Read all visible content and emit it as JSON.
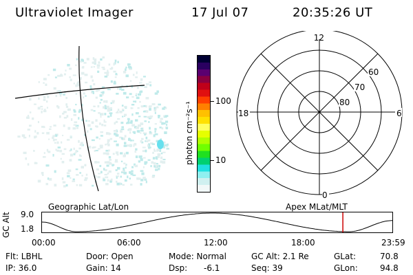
{
  "header": {
    "instrument": "Ultraviolet Imager",
    "date": "17 Jul 07",
    "time": "20:35:26 UT"
  },
  "colorbar": {
    "unit_label": "photon cm⁻²s⁻¹",
    "ticks": [
      "100",
      "10"
    ],
    "colors": [
      "#000033",
      "#2a0060",
      "#5a0070",
      "#8a0040",
      "#c0001a",
      "#e01010",
      "#ff4000",
      "#ff8000",
      "#ffc000",
      "#ffe000",
      "#ffff60",
      "#e6ff00",
      "#b0ff00",
      "#70ff00",
      "#20e020",
      "#00d070",
      "#20e0e0",
      "#90f0f0",
      "#d0f0f0",
      "#f2f8f8"
    ]
  },
  "polar_plot": {
    "mlt_labels": {
      "top": "12",
      "left": "18",
      "right": "6",
      "bottom": "0"
    },
    "lat_labels": [
      "60",
      "70",
      "80"
    ]
  },
  "timeline": {
    "left_title": "Geographic Lat/Lon",
    "right_title": "Apex MLat/MLT",
    "y_axis_label": "GC Alt",
    "y_ticks": [
      "9.0",
      "1.8"
    ],
    "x_ticks": [
      "00:00",
      "06:00",
      "12:00",
      "18:00",
      "23:59"
    ],
    "current_marker_color": "#cc0000"
  },
  "footer": {
    "row1": {
      "filter": "Flt: LBHL",
      "door": "Door: Open",
      "mode": "Mode: Normal",
      "gc_alt": "GC Alt: 2.1 Re",
      "glat_label": "GLat:",
      "glat_value": "70.8"
    },
    "row2": {
      "ip": "IP: 36.0",
      "gain": "Gain: 14",
      "dsp_label": "Dsp:",
      "dsp_value": "-6.1",
      "seq": "Seq: 39",
      "glon_label": "GLon:",
      "glon_value": "94.8"
    }
  }
}
